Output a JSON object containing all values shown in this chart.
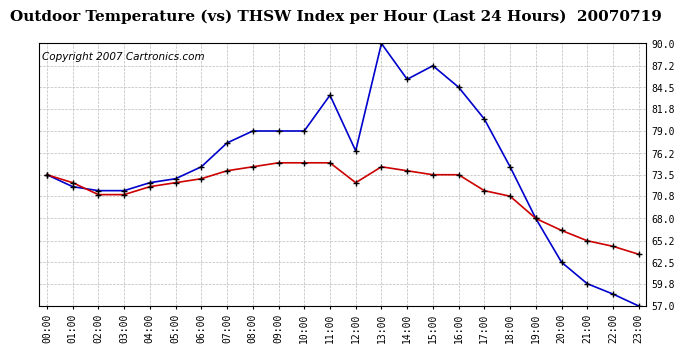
{
  "title": "Outdoor Temperature (vs) THSW Index per Hour (Last 24 Hours)  20070719",
  "copyright": "Copyright 2007 Cartronics.com",
  "hours": [
    "00:00",
    "01:00",
    "02:00",
    "03:00",
    "04:00",
    "05:00",
    "06:00",
    "07:00",
    "08:00",
    "09:00",
    "10:00",
    "11:00",
    "12:00",
    "13:00",
    "14:00",
    "15:00",
    "16:00",
    "17:00",
    "18:00",
    "19:00",
    "20:00",
    "21:00",
    "22:00",
    "23:00"
  ],
  "temp": [
    73.5,
    72.5,
    71.0,
    71.0,
    72.0,
    72.5,
    73.0,
    74.0,
    74.5,
    75.0,
    75.0,
    75.0,
    72.5,
    74.5,
    74.0,
    73.5,
    73.5,
    71.5,
    70.8,
    68.0,
    66.5,
    65.2,
    64.5,
    63.5
  ],
  "thsw": [
    73.5,
    72.0,
    71.5,
    71.5,
    72.5,
    73.0,
    74.5,
    77.5,
    79.0,
    79.0,
    79.0,
    83.5,
    76.5,
    90.0,
    85.5,
    87.2,
    84.5,
    80.5,
    74.5,
    68.0,
    62.5,
    59.8,
    58.5,
    57.0
  ],
  "temp_color": "#cc0000",
  "thsw_color": "#0000cc",
  "bg_color": "#ffffff",
  "plot_bg_color": "#ffffff",
  "grid_color": "#bbbbbb",
  "ylim_min": 57.0,
  "ylim_max": 90.0,
  "yticks": [
    57.0,
    59.8,
    62.5,
    65.2,
    68.0,
    70.8,
    73.5,
    76.2,
    79.0,
    81.8,
    84.5,
    87.2,
    90.0
  ],
  "title_fontsize": 11,
  "copyright_fontsize": 7.5
}
